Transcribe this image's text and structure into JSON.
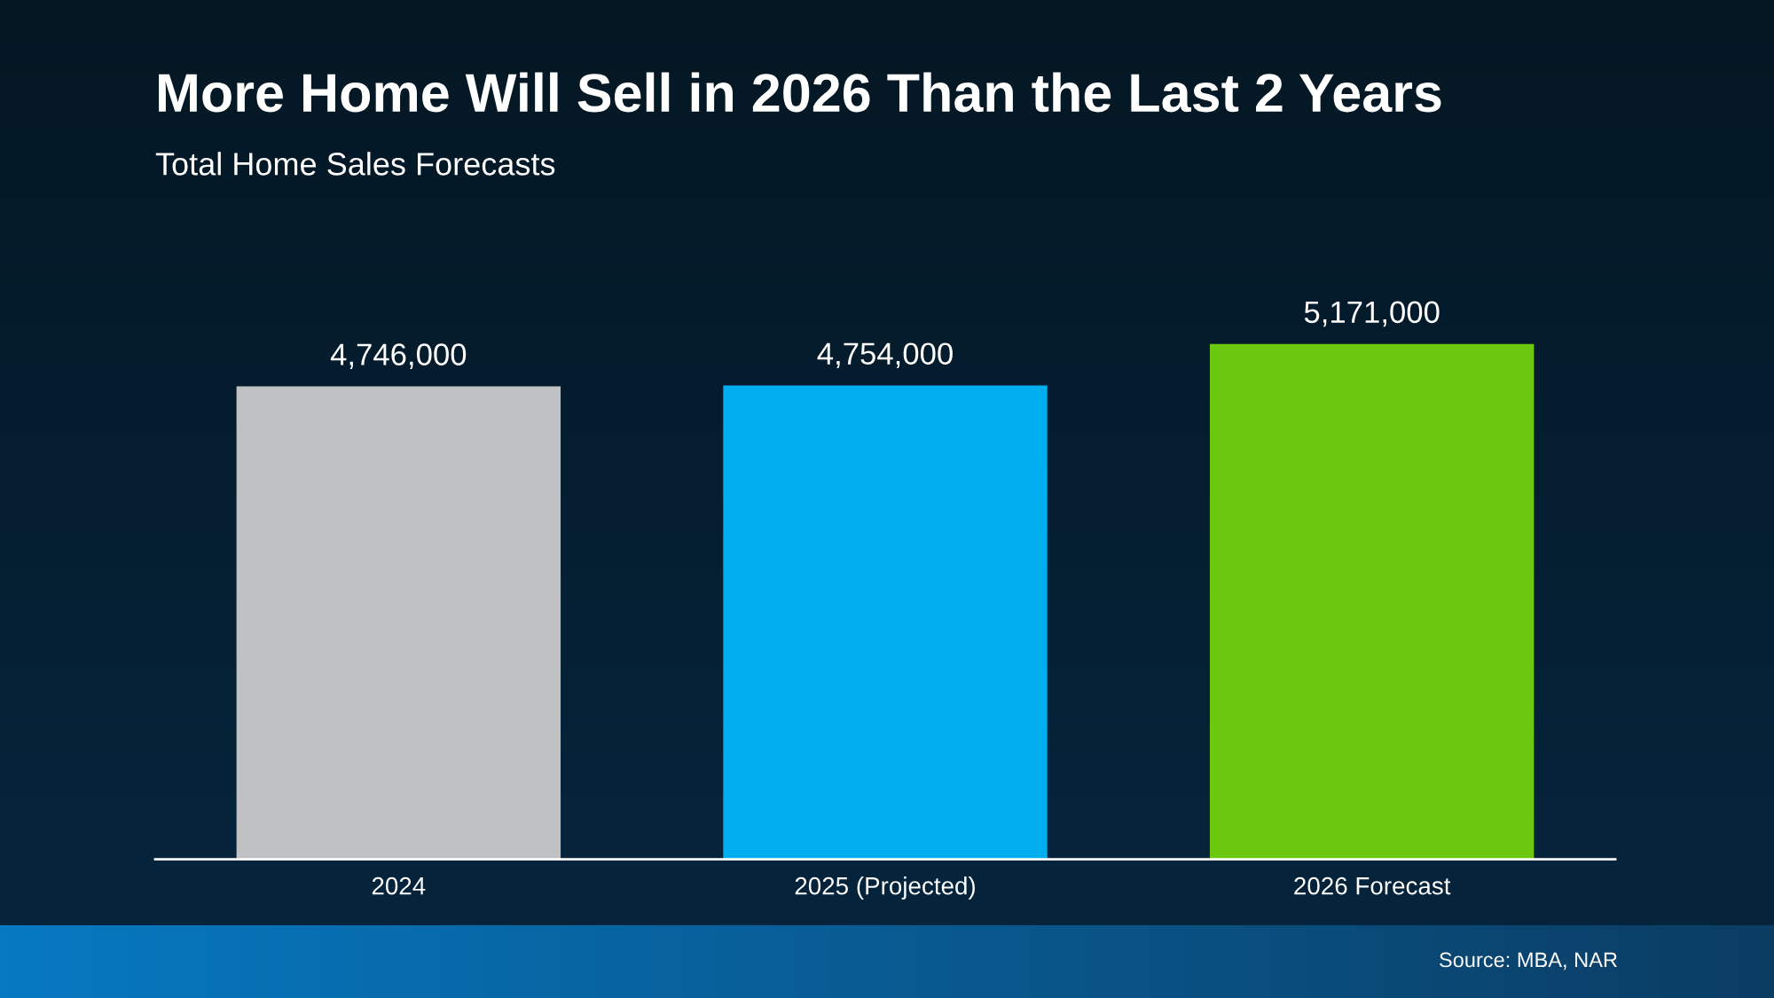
{
  "chart_data": {
    "type": "bar",
    "title": "More Home Will Sell in 2026 Than the Last 2 Years",
    "subtitle": "Total Home Sales Forecasts",
    "categories": [
      "2024",
      "2025 (Projected)",
      "2026 Forecast"
    ],
    "values": [
      4746000,
      4754000,
      5171000
    ],
    "colors": [
      "#bfc1c2",
      "#00adef",
      "#6cc70f"
    ],
    "value_labels": [
      "4,746,000",
      "4,754,000",
      "5,171,000"
    ],
    "annotations": [
      "Source: MBA, NAR"
    ],
    "grid": false,
    "legend": false,
    "tick_labels": "x"
  }
}
